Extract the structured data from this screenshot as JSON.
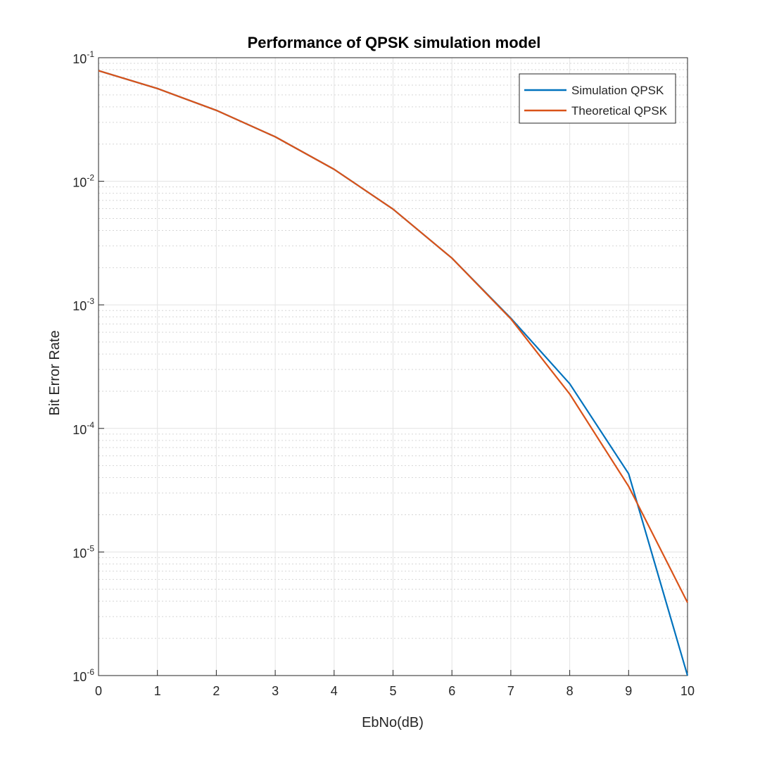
{
  "chart_data": {
    "type": "line",
    "title": "Performance of QPSK simulation model",
    "xlabel": "EbNo(dB)",
    "ylabel": "Bit Error Rate",
    "yscale": "log",
    "xlim": [
      0,
      10
    ],
    "ylim": [
      1e-06,
      0.1
    ],
    "grid": true,
    "minor_grid": true,
    "legend_position": "top-right",
    "x_ticks": [
      0,
      1,
      2,
      3,
      4,
      5,
      6,
      7,
      8,
      9,
      10
    ],
    "x_tick_labels": [
      "0",
      "1",
      "2",
      "3",
      "4",
      "5",
      "6",
      "7",
      "8",
      "9",
      "10"
    ],
    "y_ticks": [
      {
        "value": 0.1,
        "base": "10",
        "exp": "-1"
      },
      {
        "value": 0.01,
        "base": "10",
        "exp": "-2"
      },
      {
        "value": 0.001,
        "base": "10",
        "exp": "-3"
      },
      {
        "value": 0.0001,
        "base": "10",
        "exp": "-4"
      },
      {
        "value": 1e-05,
        "base": "10",
        "exp": "-5"
      },
      {
        "value": 1e-06,
        "base": "10",
        "exp": "-6"
      }
    ],
    "x": [
      0,
      1,
      2,
      3,
      4,
      5,
      6,
      7,
      8,
      9,
      10
    ],
    "series": [
      {
        "name": "Simulation QPSK",
        "color": "#0072BD",
        "values": [
          0.0786,
          0.0563,
          0.0375,
          0.0229,
          0.0125,
          0.00595,
          0.00239,
          0.00078,
          0.00023,
          4.3e-05,
          1e-06
        ]
      },
      {
        "name": "Theoretical QPSK",
        "color": "#D95319",
        "values": [
          0.0786,
          0.0563,
          0.0375,
          0.0229,
          0.0125,
          0.00595,
          0.00239,
          0.00077,
          0.00019,
          3.4e-05,
          3.9e-06
        ]
      }
    ]
  }
}
